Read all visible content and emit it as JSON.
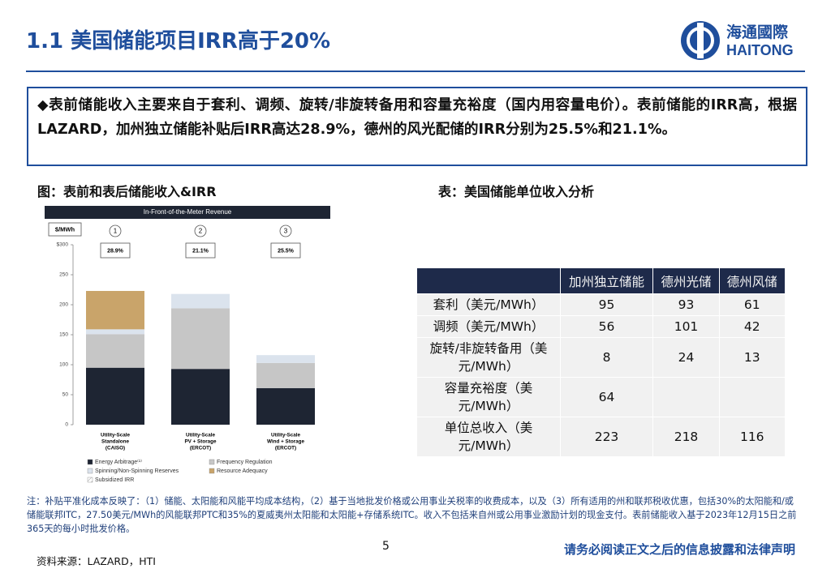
{
  "header": {
    "title": "1.1 美国储能项目IRR高于20%",
    "logo_cn": "海通國際",
    "logo_en": "HAITONG"
  },
  "summary": "◆表前储能收入主要来自于套利、调频、旋转/非旋转备用和容量充裕度（国内用容量电价）。表前储能的IRR高，根据LAZARD，加州独立储能补贴后IRR高达28.9%，德州的风光配储的IRR分别为25.5%和21.1%。",
  "figure_caption": "图：表前和表后储能收入&IRR",
  "table_caption": "表：美国储能单位收入分析",
  "chart_data": {
    "type": "bar",
    "stacked": true,
    "title": "In-Front-of-the-Meter Revenue",
    "ylabel": "$/MWh",
    "categories": [
      [
        "Utility-Scale",
        "Standalone",
        "(CAISO)"
      ],
      [
        "Utility-Scale",
        "PV + Storage",
        "(ERCOT)"
      ],
      [
        "Utility-Scale",
        "Wind + Storage",
        "(ERCOT)"
      ]
    ],
    "series": [
      {
        "name": "Energy Arbitrage⁽¹⁾",
        "color": "#1e2533",
        "values": [
          95,
          93,
          61
        ]
      },
      {
        "name": "Frequency Regulation",
        "color": "#c6c6c6",
        "values": [
          56,
          101,
          42
        ]
      },
      {
        "name": "Spinning/Non-Spinning Reserves",
        "color": "#dbe3ed",
        "values": [
          8,
          24,
          13
        ]
      },
      {
        "name": "Resource Adequacy",
        "color": "#c9a46a",
        "values": [
          64,
          null,
          null
        ]
      },
      {
        "name": "Subsidized IRR",
        "color": "#ffffff",
        "values": [
          null,
          null,
          null
        ]
      }
    ],
    "ylim": [
      0,
      300
    ],
    "yticks": [
      0,
      50,
      100,
      150,
      200,
      250,
      {
        "value": 300,
        "label": "$300"
      }
    ],
    "grid": false,
    "irr": {
      "markers": [
        "1",
        "2",
        "3"
      ],
      "values": [
        28.9,
        21.1,
        25.5
      ],
      "value_labels": [
        "28.9%",
        "21.1%",
        "25.5%"
      ]
    }
  },
  "table": {
    "columns": [
      "加州独立储能",
      "德州光储",
      "德州风储"
    ],
    "rows": [
      {
        "label": "套利（美元/MWh）",
        "cells": [
          "95",
          "93",
          "61"
        ]
      },
      {
        "label": "调频（美元/MWh）",
        "cells": [
          "56",
          "101",
          "42"
        ]
      },
      {
        "label": "旋转/非旋转备用（美元/MWh）",
        "cells": [
          "8",
          "24",
          "13"
        ]
      },
      {
        "label": "容量充裕度（美元/MWh）",
        "cells": [
          "64",
          null,
          null
        ]
      },
      {
        "label": "单位总收入（美元/MWh）",
        "cells": [
          "223",
          "218",
          "116"
        ]
      }
    ]
  },
  "note": "注：补贴平准化成本反映了：（1）储能、太阳能和风能平均成本结构，（2）基于当地批发价格或公用事业关税率的收费成本，以及（3）所有适用的州和联邦税收优惠，包括30%的太阳能和/或储能联邦ITC，27.50美元/MWh的风能联邦PTC和35%的夏威夷州太阳能和太阳能+存储系统ITC。收入不包括来自州或公用事业激励计划的现金支付。表前储能收入基于2023年12月15日之前365天的每小时批发价格。",
  "footer": {
    "page": "5",
    "source": "资料来源：LAZARD，HTI",
    "disclaimer": "请务必阅读正文之后的信息披露和法律声明"
  }
}
